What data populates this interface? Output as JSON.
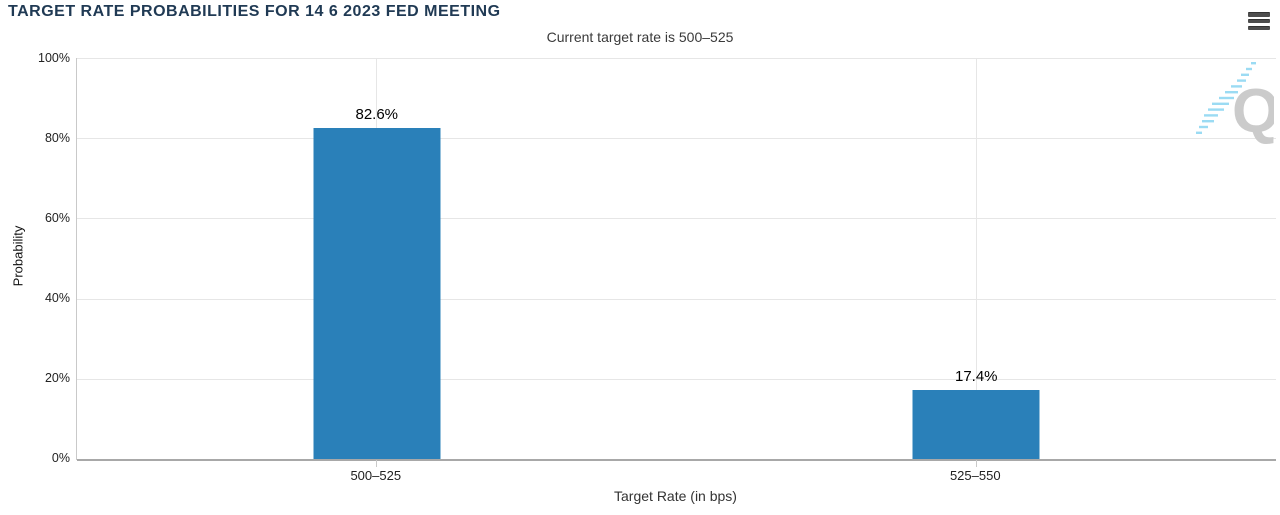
{
  "chart_data": {
    "type": "bar",
    "title": "TARGET RATE PROBABILITIES FOR 14 6 2023 FED MEETING",
    "subtitle": "Current target rate is 500–525",
    "categories": [
      "500–525",
      "525–550"
    ],
    "values": [
      82.6,
      17.4
    ],
    "data_labels": [
      "82.6%",
      "17.4%"
    ],
    "xlabel": "Target Rate (in bps)",
    "ylabel": "Probability",
    "ylim": [
      0,
      100
    ],
    "yticks": [
      "0%",
      "20%",
      "40%",
      "60%",
      "80%",
      "100%"
    ],
    "grid": true,
    "legend": false,
    "bar_color": "#2a80b9"
  },
  "colors": {
    "title_text": "#203a54",
    "bar": "#2a80b9",
    "gridline": "#e6e6e6",
    "axis_line": "#a8a8a8",
    "watermark_gray": "#cbcbcb",
    "watermark_blue": "#9bdbf3"
  },
  "toolbar": {
    "menu_icon": "hamburger-menu"
  },
  "watermark": {
    "letter": "Q"
  }
}
